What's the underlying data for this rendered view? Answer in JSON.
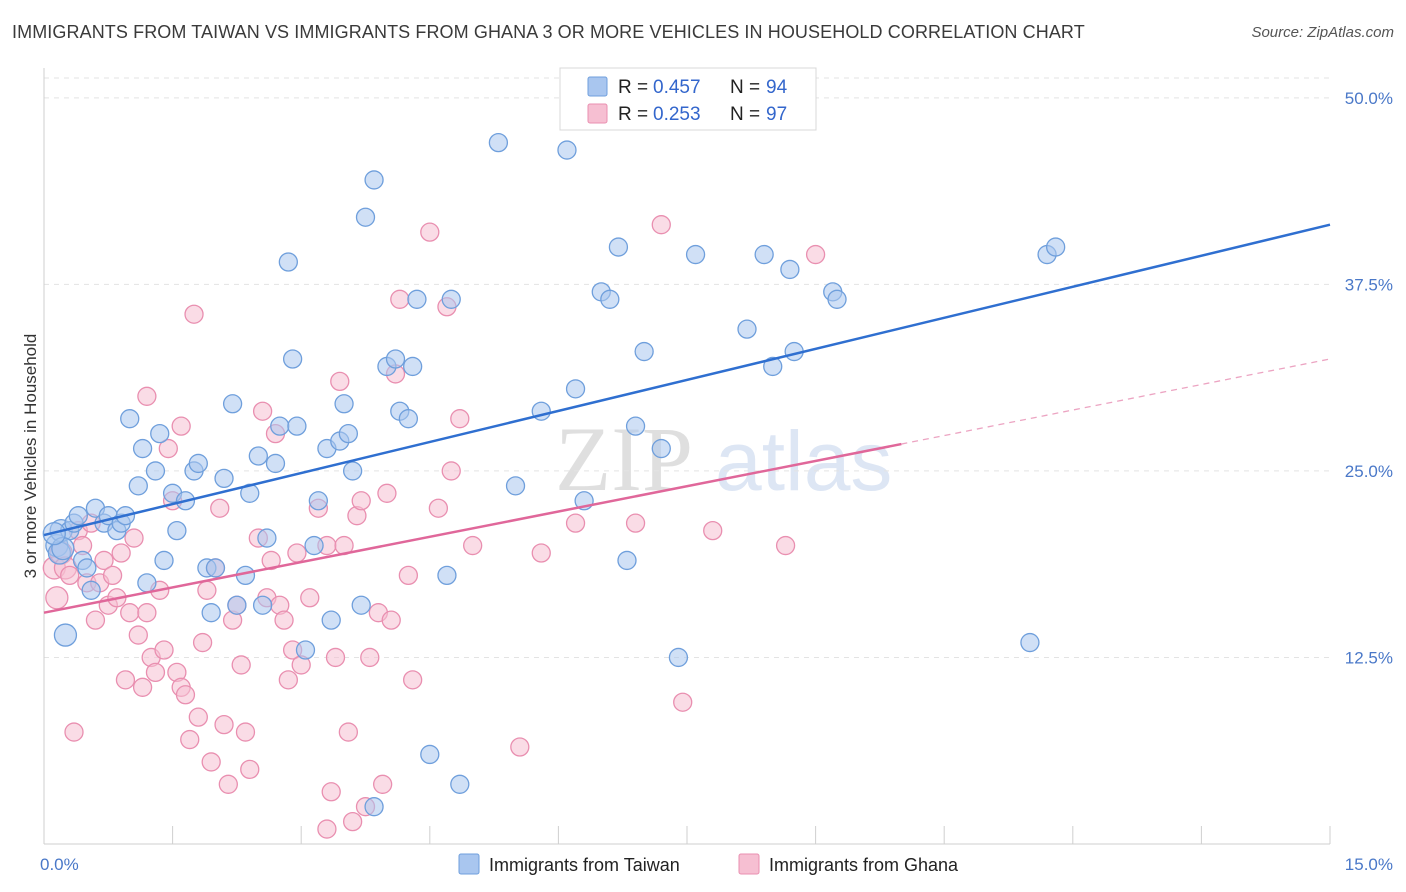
{
  "header": {
    "title": "IMMIGRANTS FROM TAIWAN VS IMMIGRANTS FROM GHANA 3 OR MORE VEHICLES IN HOUSEHOLD CORRELATION CHART",
    "source": "Source: ZipAtlas.com"
  },
  "watermark": {
    "zip": "ZIP",
    "atlas": "atlas"
  },
  "legend": {
    "taiwan": {
      "r_label": "R =",
      "r_value": "0.457",
      "n_label": "N =",
      "n_value": "94"
    },
    "ghana": {
      "r_label": "R =",
      "r_value": "0.253",
      "n_label": "N =",
      "n_value": "97"
    }
  },
  "colors": {
    "taiwan_fill": "#a9c6ef",
    "taiwan_stroke": "#6f9fdc",
    "taiwan_line": "#2f6fd0",
    "ghana_fill": "#f6bfd2",
    "ghana_stroke": "#e98fb0",
    "ghana_line": "#e0679a",
    "tick_text": "#4a78c8"
  },
  "chart_data": {
    "type": "scatter",
    "title": "IMMIGRANTS FROM TAIWAN VS IMMIGRANTS FROM GHANA 3 OR MORE VEHICLES IN HOUSEHOLD CORRELATION CHART",
    "xlabel": "",
    "ylabel": "3 or more Vehicles in Household",
    "xlim": [
      0,
      15
    ],
    "ylim": [
      0,
      52
    ],
    "x_tick_labels": [
      {
        "value": 0,
        "label": "0.0%"
      },
      {
        "value": 15,
        "label": "15.0%"
      }
    ],
    "y_tick_labels": [
      {
        "value": 12.5,
        "label": "12.5%"
      },
      {
        "value": 25,
        "label": "25.0%"
      },
      {
        "value": 37.5,
        "label": "37.5%"
      },
      {
        "value": 50,
        "label": "50.0%"
      }
    ],
    "x_minor_ticks": [
      1.5,
      3.0,
      4.5,
      6.0,
      7.5,
      9.0,
      10.5,
      12.0,
      13.5,
      15.0
    ],
    "grid": true,
    "legend_position": "top-center",
    "series": [
      {
        "name": "Immigrants from Taiwan",
        "r": 0.457,
        "n": 94,
        "trend": {
          "x0": 0,
          "y0": 20.7,
          "x1": 15,
          "y1": 41.5
        },
        "points": [
          [
            0.15,
            20.0
          ],
          [
            0.2,
            21.0
          ],
          [
            0.18,
            19.5
          ],
          [
            0.25,
            14.0
          ],
          [
            0.3,
            21.0
          ],
          [
            0.35,
            21.5
          ],
          [
            0.4,
            22.0
          ],
          [
            0.45,
            19.0
          ],
          [
            0.5,
            18.5
          ],
          [
            0.55,
            17.0
          ],
          [
            0.6,
            22.5
          ],
          [
            0.7,
            21.5
          ],
          [
            0.75,
            22.0
          ],
          [
            0.85,
            21.0
          ],
          [
            0.9,
            21.5
          ],
          [
            0.95,
            22.0
          ],
          [
            1.0,
            28.5
          ],
          [
            1.1,
            24.0
          ],
          [
            1.15,
            26.5
          ],
          [
            1.2,
            17.5
          ],
          [
            1.3,
            25.0
          ],
          [
            1.35,
            27.5
          ],
          [
            1.4,
            19.0
          ],
          [
            1.5,
            23.5
          ],
          [
            1.55,
            21.0
          ],
          [
            1.65,
            23.0
          ],
          [
            1.75,
            25.0
          ],
          [
            1.8,
            25.5
          ],
          [
            1.9,
            18.5
          ],
          [
            1.95,
            15.5
          ],
          [
            2.0,
            18.5
          ],
          [
            2.1,
            24.5
          ],
          [
            2.2,
            29.5
          ],
          [
            2.25,
            16.0
          ],
          [
            2.35,
            18.0
          ],
          [
            2.4,
            23.5
          ],
          [
            2.5,
            26.0
          ],
          [
            2.55,
            16.0
          ],
          [
            2.6,
            20.5
          ],
          [
            2.7,
            25.5
          ],
          [
            2.75,
            28.0
          ],
          [
            2.85,
            39.0
          ],
          [
            2.9,
            32.5
          ],
          [
            2.95,
            28.0
          ],
          [
            3.05,
            13.0
          ],
          [
            3.15,
            20.0
          ],
          [
            3.2,
            23.0
          ],
          [
            3.3,
            26.5
          ],
          [
            3.35,
            15.0
          ],
          [
            3.45,
            27.0
          ],
          [
            3.5,
            29.5
          ],
          [
            3.55,
            27.5
          ],
          [
            3.6,
            25.0
          ],
          [
            3.7,
            16.0
          ],
          [
            3.75,
            42.0
          ],
          [
            3.85,
            44.5
          ],
          [
            4.0,
            32.0
          ],
          [
            4.1,
            32.5
          ],
          [
            4.15,
            29.0
          ],
          [
            4.25,
            28.5
          ],
          [
            4.3,
            32.0
          ],
          [
            4.35,
            36.5
          ],
          [
            4.5,
            6.0
          ],
          [
            4.7,
            18.0
          ],
          [
            4.75,
            36.5
          ],
          [
            4.85,
            4.0
          ],
          [
            5.3,
            47.0
          ],
          [
            5.5,
            24.0
          ],
          [
            5.8,
            29.0
          ],
          [
            6.1,
            46.5
          ],
          [
            6.2,
            30.5
          ],
          [
            6.3,
            23.0
          ],
          [
            6.5,
            37.0
          ],
          [
            6.6,
            36.5
          ],
          [
            6.7,
            40.0
          ],
          [
            6.8,
            19.0
          ],
          [
            6.9,
            28.0
          ],
          [
            7.0,
            33.0
          ],
          [
            7.2,
            26.5
          ],
          [
            7.4,
            12.5
          ],
          [
            7.6,
            39.5
          ],
          [
            8.2,
            34.5
          ],
          [
            8.4,
            39.5
          ],
          [
            8.5,
            32.0
          ],
          [
            8.7,
            38.5
          ],
          [
            8.75,
            33.0
          ],
          [
            9.2,
            37.0
          ],
          [
            9.25,
            36.5
          ],
          [
            11.5,
            13.5
          ],
          [
            11.7,
            39.5
          ],
          [
            11.8,
            40.0
          ],
          [
            0.22,
            19.8
          ],
          [
            0.12,
            20.8
          ],
          [
            3.85,
            2.5
          ]
        ]
      },
      {
        "name": "Immigrants from Ghana",
        "r": 0.253,
        "n": 97,
        "trend": {
          "x0": 0,
          "y0": 15.5,
          "x1": 10.0,
          "y1": 26.8
        },
        "trend_dashed": {
          "x0": 10.0,
          "y0": 26.8,
          "x1": 15,
          "y1": 32.5
        },
        "points": [
          [
            0.12,
            18.5
          ],
          [
            0.15,
            16.5
          ],
          [
            0.2,
            19.5
          ],
          [
            0.25,
            18.5
          ],
          [
            0.3,
            18.0
          ],
          [
            0.35,
            7.5
          ],
          [
            0.4,
            21.0
          ],
          [
            0.45,
            20.0
          ],
          [
            0.5,
            17.5
          ],
          [
            0.55,
            21.5
          ],
          [
            0.6,
            15.0
          ],
          [
            0.65,
            17.5
          ],
          [
            0.7,
            19.0
          ],
          [
            0.75,
            16.0
          ],
          [
            0.8,
            18.0
          ],
          [
            0.85,
            16.5
          ],
          [
            0.9,
            19.5
          ],
          [
            0.95,
            11.0
          ],
          [
            1.0,
            15.5
          ],
          [
            1.05,
            20.5
          ],
          [
            1.1,
            14.0
          ],
          [
            1.15,
            10.5
          ],
          [
            1.2,
            15.5
          ],
          [
            1.25,
            12.5
          ],
          [
            1.3,
            11.5
          ],
          [
            1.35,
            17.0
          ],
          [
            1.4,
            13.0
          ],
          [
            1.45,
            26.5
          ],
          [
            1.5,
            23.0
          ],
          [
            1.55,
            11.5
          ],
          [
            1.6,
            10.5
          ],
          [
            1.65,
            10.0
          ],
          [
            1.7,
            7.0
          ],
          [
            1.75,
            35.5
          ],
          [
            1.8,
            8.5
          ],
          [
            1.85,
            13.5
          ],
          [
            1.9,
            17.0
          ],
          [
            1.95,
            5.5
          ],
          [
            2.0,
            18.5
          ],
          [
            2.05,
            22.5
          ],
          [
            2.1,
            8.0
          ],
          [
            2.15,
            4.0
          ],
          [
            2.2,
            15.0
          ],
          [
            2.25,
            16.0
          ],
          [
            2.3,
            12.0
          ],
          [
            2.35,
            7.5
          ],
          [
            2.4,
            5.0
          ],
          [
            2.5,
            20.5
          ],
          [
            2.55,
            29.0
          ],
          [
            2.6,
            16.5
          ],
          [
            2.65,
            19.0
          ],
          [
            2.7,
            27.5
          ],
          [
            2.75,
            16.0
          ],
          [
            2.8,
            15.0
          ],
          [
            2.85,
            11.0
          ],
          [
            2.9,
            13.0
          ],
          [
            2.95,
            19.5
          ],
          [
            3.0,
            12.0
          ],
          [
            3.1,
            16.5
          ],
          [
            3.2,
            22.5
          ],
          [
            3.3,
            20.0
          ],
          [
            3.35,
            3.5
          ],
          [
            3.4,
            12.5
          ],
          [
            3.45,
            31.0
          ],
          [
            3.5,
            20.0
          ],
          [
            3.55,
            7.5
          ],
          [
            3.6,
            1.5
          ],
          [
            3.65,
            22.0
          ],
          [
            3.7,
            23.0
          ],
          [
            3.75,
            2.5
          ],
          [
            3.8,
            12.5
          ],
          [
            3.9,
            15.5
          ],
          [
            3.95,
            4.0
          ],
          [
            4.0,
            23.5
          ],
          [
            4.05,
            15.0
          ],
          [
            4.1,
            31.5
          ],
          [
            4.15,
            36.5
          ],
          [
            4.25,
            18.0
          ],
          [
            4.3,
            11.0
          ],
          [
            4.5,
            41.0
          ],
          [
            4.6,
            22.5
          ],
          [
            4.7,
            36.0
          ],
          [
            4.75,
            25.0
          ],
          [
            4.85,
            28.5
          ],
          [
            5.0,
            20.0
          ],
          [
            5.55,
            6.5
          ],
          [
            5.8,
            19.5
          ],
          [
            6.2,
            21.5
          ],
          [
            6.9,
            21.5
          ],
          [
            7.2,
            41.5
          ],
          [
            7.45,
            9.5
          ],
          [
            7.8,
            21.0
          ],
          [
            8.65,
            20.0
          ],
          [
            9.0,
            39.5
          ],
          [
            3.3,
            1.0
          ],
          [
            1.2,
            30.0
          ],
          [
            1.6,
            28.0
          ]
        ]
      }
    ]
  },
  "bottom_legend": {
    "taiwan": "Immigrants from Taiwan",
    "ghana": "Immigrants from Ghana"
  }
}
